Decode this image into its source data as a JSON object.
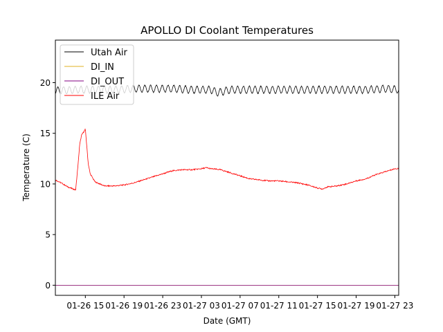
{
  "chart_data": {
    "type": "line",
    "title": "APOLLO DI Coolant Temperatures",
    "xlabel": "Date (GMT)",
    "ylabel": "Temperature (C)",
    "x_unit": "hours since 2020-01-26 00:00 GMT",
    "xlim": [
      11.9,
      47.4
    ],
    "ylim": [
      -1,
      24.2
    ],
    "yticks": [
      0,
      5,
      10,
      15,
      20
    ],
    "ytick_labels": [
      "0",
      "5",
      "10",
      "15",
      "20"
    ],
    "xticks": [
      15,
      19,
      23,
      27,
      31,
      35,
      39,
      43,
      47
    ],
    "xtick_labels": [
      "01-26 15",
      "01-26 19",
      "01-26 23",
      "01-27 03",
      "01-27 07",
      "01-27 11",
      "01-27 15",
      "01-27 19",
      "01-27 23"
    ],
    "legend_position": "upper-left",
    "series": [
      {
        "name": "Utah Air",
        "color": "#000000",
        "oscillation_amplitude": 0.35,
        "oscillation_period_hours": 0.6,
        "x": [
          11.9,
          14,
          16,
          18,
          20,
          22,
          24,
          26,
          28,
          28.7,
          30,
          32,
          34,
          36,
          38,
          40,
          42,
          44,
          46,
          47.4
        ],
        "y": [
          19.2,
          19.3,
          19.3,
          19.3,
          19.4,
          19.4,
          19.4,
          19.3,
          19.3,
          19.0,
          19.3,
          19.3,
          19.3,
          19.3,
          19.3,
          19.3,
          19.3,
          19.3,
          19.4,
          19.3
        ]
      },
      {
        "name": "DI_IN",
        "color": "#e0b020",
        "x": [
          11.9,
          47.4
        ],
        "y": [
          0,
          0
        ]
      },
      {
        "name": "DI_OUT",
        "color": "#800080",
        "x": [
          11.9,
          47.4
        ],
        "y": [
          0,
          0
        ]
      },
      {
        "name": "ILE Air",
        "color": "#ff0000",
        "x": [
          11.9,
          12.5,
          13.2,
          14.0,
          14.3,
          14.4,
          14.6,
          15.0,
          15.3,
          15.5,
          16.0,
          17.0,
          18.0,
          19.0,
          20.0,
          21.0,
          22.0,
          23.0,
          24.0,
          25.0,
          26.0,
          27.0,
          27.5,
          28.0,
          29.0,
          30.0,
          31.0,
          32.0,
          33.0,
          34.0,
          35.0,
          36.0,
          37.0,
          38.0,
          39.0,
          39.5,
          40.0,
          41.0,
          42.0,
          43.0,
          44.0,
          45.0,
          46.0,
          47.0,
          47.4
        ],
        "y": [
          10.4,
          10.1,
          9.7,
          9.4,
          12.5,
          13.8,
          14.8,
          15.4,
          12.0,
          11.0,
          10.2,
          9.8,
          9.8,
          9.9,
          10.1,
          10.4,
          10.7,
          11.0,
          11.3,
          11.4,
          11.4,
          11.5,
          11.6,
          11.5,
          11.4,
          11.1,
          10.8,
          10.5,
          10.4,
          10.3,
          10.3,
          10.2,
          10.1,
          9.9,
          9.6,
          9.5,
          9.7,
          9.8,
          10.0,
          10.3,
          10.5,
          10.9,
          11.2,
          11.5,
          11.5
        ]
      }
    ]
  }
}
